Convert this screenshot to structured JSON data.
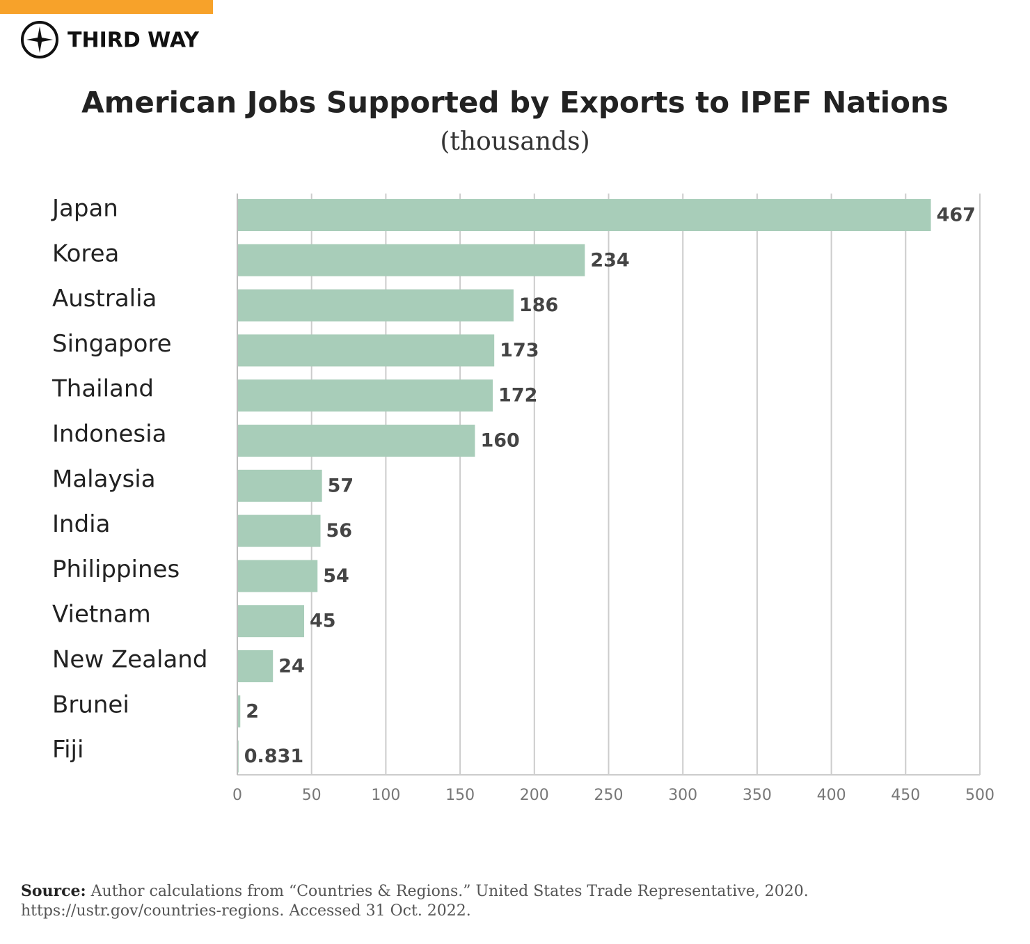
{
  "brand": "THIRD WAY",
  "chart_data": {
    "type": "bar",
    "orientation": "horizontal",
    "title": "American Jobs Supported by Exports to IPEF Nations",
    "subtitle": "(thousands)",
    "categories": [
      "Japan",
      "Korea",
      "Australia",
      "Singapore",
      "Thailand",
      "Indonesia",
      "Malaysia",
      "India",
      "Philippines",
      "Vietnam",
      "New Zealand",
      "Brunei",
      "Fiji"
    ],
    "values": [
      467,
      234,
      186,
      173,
      172,
      160,
      57,
      56,
      54,
      45,
      24,
      2,
      0.831
    ],
    "color": "#a8cdb9",
    "xlim": [
      0,
      500
    ],
    "xticks": [
      0,
      50,
      100,
      150,
      200,
      250,
      300,
      350,
      400,
      450,
      500
    ],
    "grid": true
  },
  "source": {
    "label": "Source:",
    "lines": [
      "Author calculations from “Countries & Regions.” United States Trade Representative, 2020.",
      "https://ustr.gov/countries-regions. Accessed 31 Oct. 2022."
    ]
  }
}
